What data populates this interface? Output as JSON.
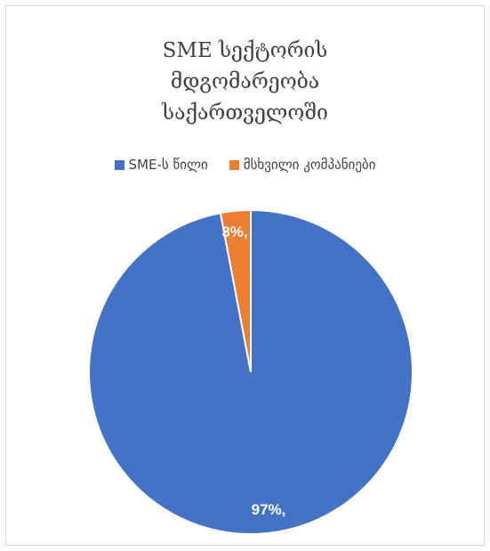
{
  "chart_data": {
    "type": "pie",
    "title_lines": [
      "SME  სექტორის",
      "მდგომარეობა",
      "საქართველოში"
    ],
    "categories": [
      "SME-ს წილი",
      "მსხვილი კომპანიები"
    ],
    "values": [
      97,
      3
    ],
    "data_labels": [
      "97%,",
      "3%,"
    ],
    "colors": [
      "#4472c4",
      "#ed7d31"
    ],
    "legend_position": "top"
  }
}
